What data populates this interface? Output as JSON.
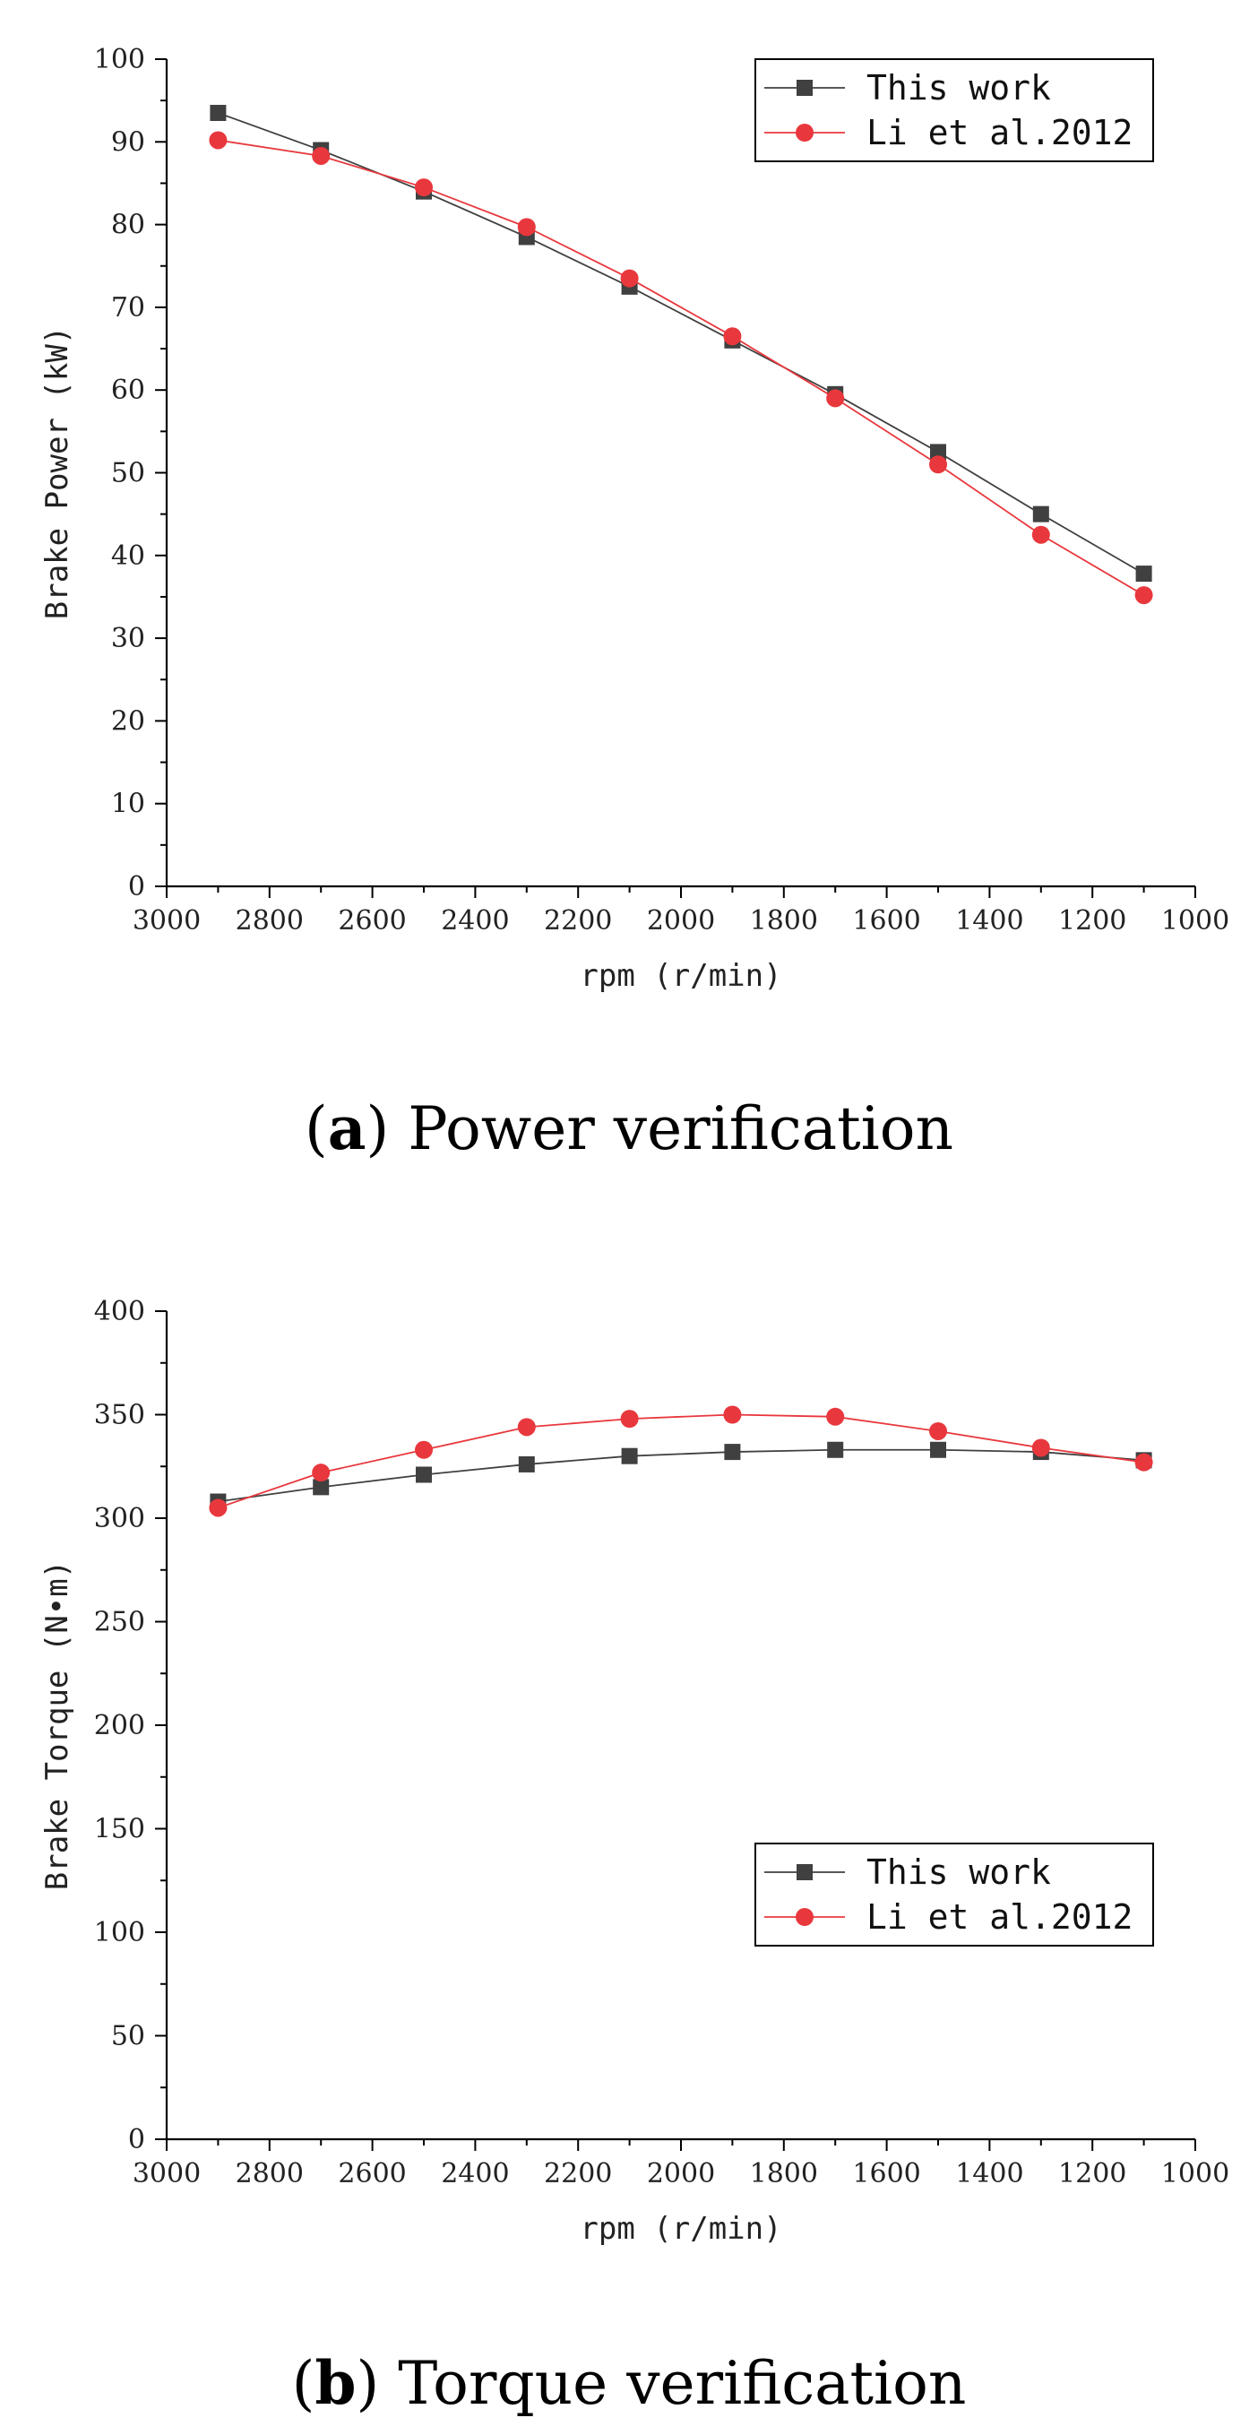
{
  "colors": {
    "this_work": "#404040",
    "li_2012": "#e8383d"
  },
  "chart_data": [
    {
      "type": "line",
      "caption_letter": "a",
      "caption_text": "Power verification",
      "xlabel": "rpm (r/min)",
      "ylabel": "Brake Power (kW)",
      "xlim": [
        3000,
        1000
      ],
      "ylim": [
        0,
        100
      ],
      "x_ticks": [
        3000,
        2800,
        2600,
        2400,
        2200,
        2000,
        1800,
        1600,
        1400,
        1200,
        1000
      ],
      "y_ticks": [
        0,
        10,
        20,
        30,
        40,
        50,
        60,
        70,
        80,
        90,
        100
      ],
      "legend_position": "top-right",
      "x": [
        2900,
        2700,
        2500,
        2300,
        2100,
        1900,
        1700,
        1500,
        1300,
        1100
      ],
      "series": [
        {
          "name": "This work",
          "marker": "square",
          "values": [
            93.5,
            89.0,
            84.0,
            78.5,
            72.5,
            66.0,
            59.5,
            52.5,
            45.0,
            37.8
          ]
        },
        {
          "name": "Li et al.2012",
          "marker": "circle",
          "values": [
            90.2,
            88.3,
            84.5,
            79.7,
            73.5,
            66.5,
            59.0,
            51.0,
            42.5,
            35.2
          ]
        }
      ]
    },
    {
      "type": "line",
      "caption_letter": "b",
      "caption_text": "Torque verification",
      "xlabel": "rpm (r/min)",
      "ylabel": "Brake Torque (N•m)",
      "xlim": [
        3000,
        1000
      ],
      "ylim": [
        0,
        400
      ],
      "x_ticks": [
        3000,
        2800,
        2600,
        2400,
        2200,
        2000,
        1800,
        1600,
        1400,
        1200,
        1000
      ],
      "y_ticks": [
        0,
        50,
        100,
        150,
        200,
        250,
        300,
        350,
        400
      ],
      "legend_position": "center-right",
      "x": [
        2900,
        2700,
        2500,
        2300,
        2100,
        1900,
        1700,
        1500,
        1300,
        1100
      ],
      "series": [
        {
          "name": "This work",
          "marker": "square",
          "values": [
            308,
            315,
            321,
            326,
            330,
            332,
            333,
            333,
            332,
            328
          ]
        },
        {
          "name": "Li et al.2012",
          "marker": "circle",
          "values": [
            305,
            322,
            333,
            344,
            348,
            350,
            349,
            342,
            334,
            327
          ]
        }
      ]
    }
  ]
}
